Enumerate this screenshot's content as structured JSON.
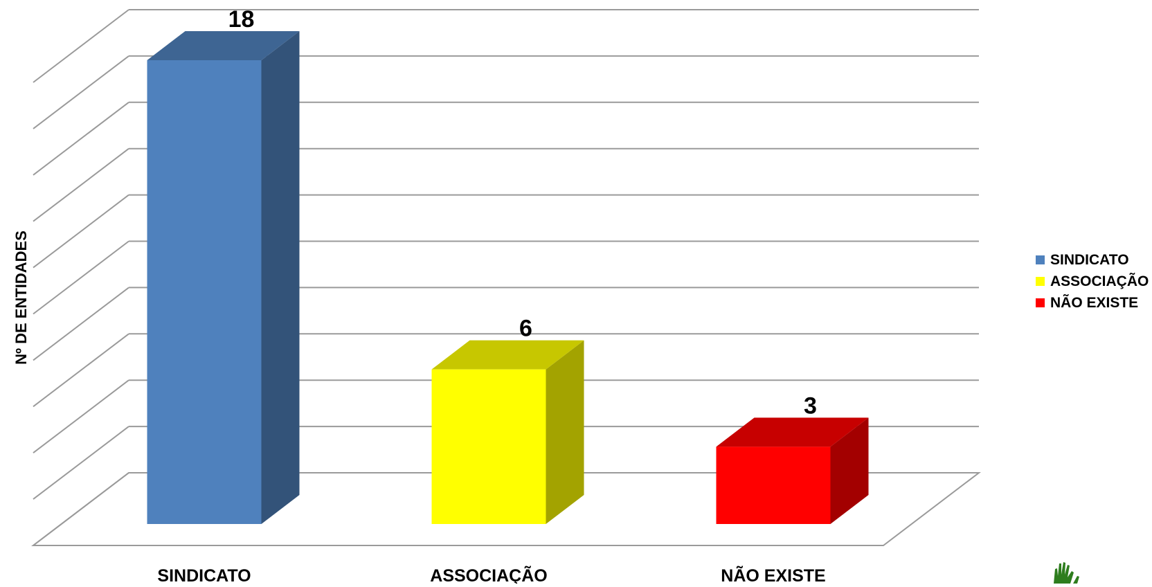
{
  "chart_data": {
    "type": "bar",
    "title": "",
    "xlabel": "",
    "ylabel": "Nº DE ENTIDADES",
    "categories": [
      "SINDICATO",
      "ASSOCIAÇÃO",
      "NÃO EXISTE"
    ],
    "values": [
      18,
      6,
      3
    ],
    "data_labels": [
      "18",
      "6",
      "3"
    ],
    "colors": [
      "#4F81BD",
      "#FFFF00",
      "#FF0000"
    ],
    "ylim": [
      0,
      20
    ],
    "grid": true,
    "legend": {
      "position": "right",
      "entries": [
        "SINDICATO",
        "ASSOCIAÇÃO",
        "NÃO EXISTE"
      ]
    },
    "style": "3d-column"
  },
  "logo": {
    "icon": "green-hands-logo-icon",
    "color": "#2E7D1E"
  }
}
